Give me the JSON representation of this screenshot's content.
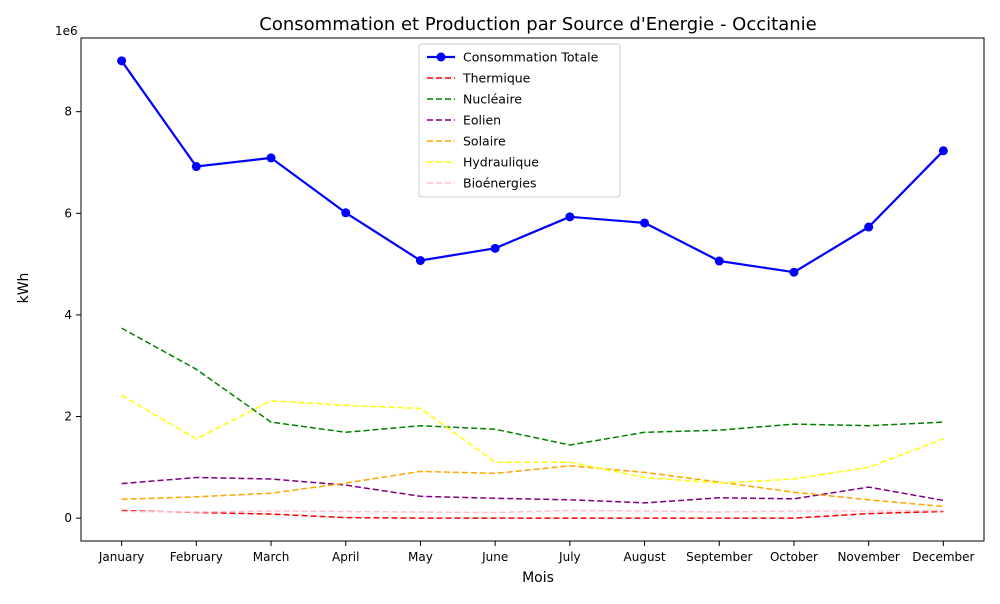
{
  "chart_data": {
    "type": "line",
    "title": "Consommation et Production par Source d'Energie - Occitanie",
    "xlabel": "Mois",
    "ylabel": "kWh",
    "offset_label": "1e6",
    "categories": [
      "January",
      "February",
      "March",
      "April",
      "May",
      "June",
      "July",
      "August",
      "September",
      "October",
      "November",
      "December"
    ],
    "ylim": [
      -450000,
      9450000
    ],
    "yticks": [
      0,
      2000000,
      4000000,
      6000000,
      8000000
    ],
    "ytick_labels": [
      "0",
      "2",
      "4",
      "6",
      "8"
    ],
    "grid": false,
    "legend_position": "top-center",
    "series": [
      {
        "name": "Consommation Totale",
        "color": "#0000ff",
        "style": "solid-markers",
        "values": [
          9000000,
          6920000,
          7090000,
          6010000,
          5070000,
          5310000,
          5930000,
          5810000,
          5060000,
          4840000,
          5730000,
          7230000
        ]
      },
      {
        "name": "Thermique",
        "color": "#ff0000",
        "style": "dashed",
        "values": [
          150000,
          110000,
          80000,
          10000,
          0,
          0,
          0,
          0,
          0,
          0,
          90000,
          130000
        ]
      },
      {
        "name": "Nucléaire",
        "color": "#008000",
        "style": "dashed",
        "values": [
          3740000,
          2930000,
          1890000,
          1690000,
          1820000,
          1750000,
          1440000,
          1690000,
          1730000,
          1850000,
          1820000,
          1890000
        ]
      },
      {
        "name": "Eolien",
        "color": "#800080",
        "style": "dashed",
        "values": [
          680000,
          800000,
          770000,
          650000,
          430000,
          390000,
          360000,
          300000,
          400000,
          380000,
          610000,
          350000
        ]
      },
      {
        "name": "Solaire",
        "color": "#ffa500",
        "style": "dashed",
        "values": [
          370000,
          420000,
          490000,
          690000,
          920000,
          880000,
          1030000,
          900000,
          710000,
          510000,
          360000,
          230000
        ]
      },
      {
        "name": "Hydraulique",
        "color": "#ffff00",
        "style": "dashed",
        "values": [
          2420000,
          1560000,
          2310000,
          2220000,
          2160000,
          1100000,
          1100000,
          800000,
          690000,
          770000,
          1000000,
          1560000
        ]
      },
      {
        "name": "Bioénergies",
        "color": "#ffc0cb",
        "style": "dashed",
        "values": [
          130000,
          120000,
          140000,
          130000,
          120000,
          110000,
          150000,
          140000,
          120000,
          140000,
          140000,
          150000
        ]
      }
    ]
  }
}
